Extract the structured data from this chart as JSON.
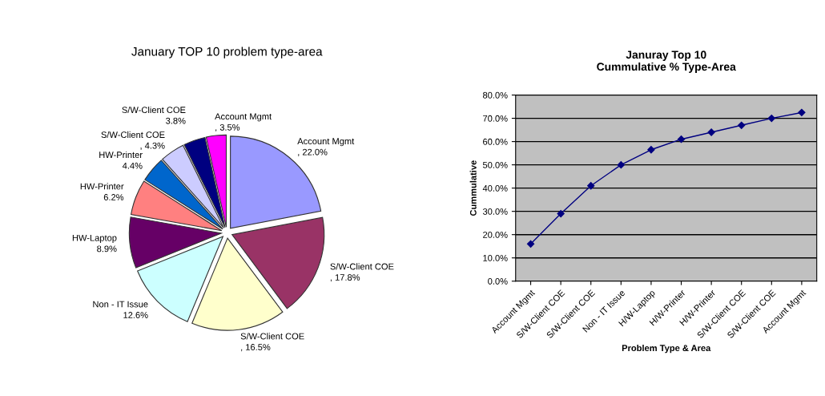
{
  "chart_data": [
    {
      "type": "pie",
      "title": "January TOP 10 problem type-area",
      "categories": [
        "Account Mgmt",
        "S/W-Client COE",
        "S/W-Client COE",
        "Non - IT Issue",
        "HW-Laptop",
        "HW-Printer",
        "HW-Printer",
        "S/W-Client COE",
        "S/W-Client COE",
        "Account Mgmt"
      ],
      "values": [
        22.0,
        17.8,
        16.5,
        12.6,
        8.9,
        6.2,
        4.4,
        4.3,
        3.8,
        3.5
      ],
      "value_labels": [
        ", 22.0%",
        ", 17.8%",
        ", 16.5%",
        "12.6%",
        "8.9%",
        "6.2%",
        "4.4%",
        ", 4.3%",
        "3.8%",
        ", 3.5%"
      ],
      "colors": [
        "#9999ff",
        "#993366",
        "#ffffcc",
        "#ccffff",
        "#660066",
        "#ff8080",
        "#0066cc",
        "#ccccff",
        "#000080",
        "#ff00ff"
      ]
    },
    {
      "type": "line",
      "title": "Januray Top 10\nCummulative % Type-Area",
      "xlabel": "Problem Type & Area",
      "ylabel": "Cummulative",
      "categories": [
        "Account Mgmt",
        "S/W-Client COE",
        "S/W-Client COE",
        "Non - IT Issue",
        "H/W-Laptop",
        "H/W-Printer",
        "H/W-Printer",
        "S/W-Client COE",
        "S/W-Client COE",
        "Account Mgmt"
      ],
      "series": [
        {
          "color": "#000080",
          "values": [
            16,
            29,
            41,
            50,
            56.5,
            61,
            64,
            67,
            70,
            72.5
          ]
        }
      ],
      "ylim": [
        0,
        80
      ],
      "yticks": [
        {
          "value": 0,
          "label": "0.0%"
        },
        {
          "value": 10,
          "label": "10.0%"
        },
        {
          "value": 20,
          "label": "20.0%"
        },
        {
          "value": 30,
          "label": "30.0%"
        },
        {
          "value": 40,
          "label": "40.0%"
        },
        {
          "value": 50,
          "label": "50.0%"
        },
        {
          "value": 60,
          "label": "60.0%"
        },
        {
          "value": 70,
          "label": "70.0%"
        },
        {
          "value": 80,
          "label": "80.0%"
        }
      ],
      "grid": "y",
      "marker": "diamond",
      "line_style": "solid"
    }
  ]
}
